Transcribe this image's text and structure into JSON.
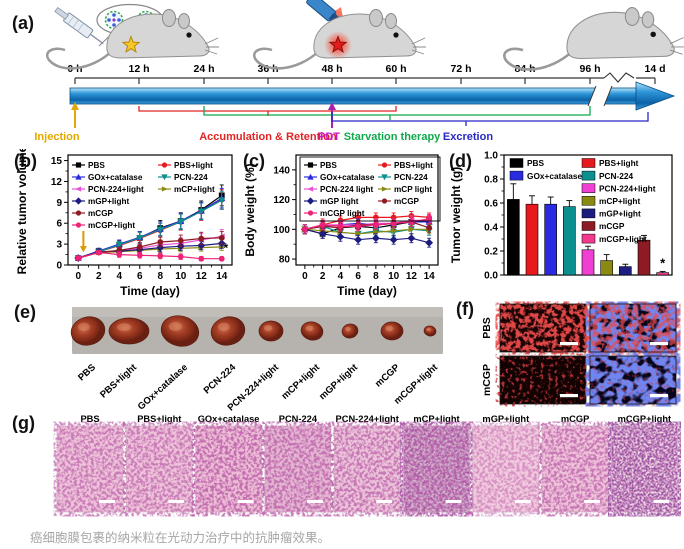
{
  "figure": {
    "caption": "癌细胞膜包裹的纳米粒在光动力治疗中的抗肿瘤效果。"
  },
  "panel_labels": {
    "a": "(a)",
    "b": "(b)",
    "c": "(c)",
    "d": "(d)",
    "e": "(e)",
    "f": "(f)",
    "g": "(g)"
  },
  "timeline": {
    "ticks": [
      "0 h",
      "12 h",
      "24 h",
      "36 h",
      "48 h",
      "60 h",
      "72 h",
      "84 h",
      "96 h",
      "14 d"
    ],
    "phases": [
      {
        "name": "Injection",
        "color": "#e2a800"
      },
      {
        "name": "Accumulation & Retention",
        "color": "#e02424"
      },
      {
        "name": "PDT",
        "color": "#c816c8"
      },
      {
        "name": "Starvation therapy",
        "color": "#11a94c"
      },
      {
        "name": "Excretion",
        "color": "#2828c8"
      }
    ]
  },
  "chart_data": [
    {
      "id": "b",
      "type": "line",
      "title": "",
      "xlabel": "Time (day)",
      "ylabel": "Relative tumor volume",
      "x": [
        0,
        2,
        4,
        6,
        8,
        10,
        12,
        14
      ],
      "xticks": [
        0,
        2,
        4,
        6,
        8,
        10,
        12,
        14
      ],
      "yticks": [
        0,
        3,
        6,
        9,
        12,
        15
      ],
      "xlim": [
        -1,
        15
      ],
      "ylim": [
        0,
        15.8
      ],
      "legend_box": false,
      "legend_columns": [
        [
          "PBS",
          "GOx+catalase",
          "PCN-224+light",
          "mGP+light",
          "mCGP",
          "mCGP+light"
        ],
        [
          "PBS+light",
          "PCN-224",
          "mCP+light"
        ]
      ],
      "series": [
        {
          "name": "PBS",
          "color": "#000000",
          "marker": "square",
          "values": [
            1,
            2.0,
            2.9,
            3.9,
            5.3,
            6.3,
            7.9,
            10.0
          ],
          "err": [
            0.2,
            0.4,
            0.6,
            0.9,
            1.1,
            1.2,
            1.3,
            1.5
          ]
        },
        {
          "name": "PBS+light",
          "color": "#e8191c",
          "marker": "circle",
          "values": [
            1,
            1.9,
            2.8,
            3.8,
            5.0,
            6.2,
            7.7,
            9.4
          ],
          "err": [
            0.2,
            0.3,
            0.6,
            0.9,
            1.0,
            1.2,
            1.3,
            1.4
          ]
        },
        {
          "name": "GOx+catalase",
          "color": "#2a2ae0",
          "marker": "triangle-up",
          "values": [
            1,
            2.0,
            3.0,
            4.0,
            5.2,
            6.3,
            7.8,
            9.6
          ],
          "err": [
            0.2,
            0.4,
            0.6,
            0.8,
            1.0,
            1.1,
            1.2,
            1.4
          ]
        },
        {
          "name": "PCN-224",
          "color": "#0c8f8f",
          "marker": "triangle-down",
          "values": [
            1,
            1.9,
            2.9,
            3.9,
            5.1,
            6.2,
            7.7,
            9.3
          ],
          "err": [
            0.2,
            0.4,
            0.5,
            0.8,
            0.9,
            1.1,
            1.2,
            1.3
          ]
        },
        {
          "name": "PCN-224+light",
          "color": "#ea4fd8",
          "marker": "triangle-left",
          "values": [
            1,
            1.8,
            2.1,
            2.4,
            2.9,
            3.1,
            3.6,
            4.1
          ],
          "err": [
            0.15,
            0.3,
            0.5,
            0.6,
            0.7,
            0.8,
            0.9,
            1.0
          ]
        },
        {
          "name": "mCP+light",
          "color": "#8a8a12",
          "marker": "triangle-right",
          "values": [
            1,
            1.8,
            1.9,
            2.1,
            2.3,
            2.4,
            2.5,
            2.6
          ],
          "err": [
            0.15,
            0.3,
            0.4,
            0.5,
            0.5,
            0.5,
            0.5,
            0.5
          ]
        },
        {
          "name": "mGP+light",
          "color": "#1d1d80",
          "marker": "diamond",
          "values": [
            1,
            1.9,
            2.0,
            2.2,
            2.5,
            2.7,
            2.8,
            3.1
          ],
          "err": [
            0.15,
            0.3,
            0.4,
            0.5,
            0.6,
            0.6,
            0.6,
            0.7
          ]
        },
        {
          "name": "mCGP",
          "color": "#8e1b24",
          "marker": "circle",
          "values": [
            1,
            1.8,
            2.1,
            2.6,
            3.3,
            3.5,
            3.8,
            3.9
          ],
          "err": [
            0.15,
            0.3,
            0.5,
            0.6,
            0.7,
            0.8,
            0.9,
            0.9
          ]
        },
        {
          "name": "mCGP+light",
          "color": "#ee2277",
          "marker": "circle",
          "values": [
            1,
            1.8,
            1.5,
            1.4,
            1.3,
            1.2,
            0.9,
            0.9
          ],
          "err": [
            0.15,
            0.3,
            0.4,
            0.4,
            0.4,
            0.4,
            0.3,
            0.3
          ]
        }
      ],
      "annotations": {
        "arrow": {
          "x": 0.5,
          "y_from": 4.9,
          "y_to": 2.0,
          "color": "#dd9900"
        },
        "star": {
          "x": 14.4,
          "y": 1.9,
          "symbol": "*"
        }
      }
    },
    {
      "id": "c",
      "type": "line",
      "title": "",
      "xlabel": "Time (day)",
      "ylabel": "Body weight (%)",
      "x": [
        0,
        2,
        4,
        6,
        8,
        10,
        12,
        14
      ],
      "xticks": [
        0,
        2,
        4,
        6,
        8,
        10,
        12,
        14
      ],
      "yticks": [
        80,
        100,
        120,
        140
      ],
      "xlim": [
        -1,
        15
      ],
      "ylim": [
        76,
        150
      ],
      "legend_box": true,
      "legend_columns": [
        [
          "PBS",
          "GOx+catalase",
          "PCN-224 light",
          "mGP light",
          "mCGP light"
        ],
        [
          "PBS+light",
          "PCN-224",
          "mCP light",
          "mCGP"
        ]
      ],
      "series": [
        {
          "name": "PBS",
          "color": "#000000",
          "marker": "square",
          "values": [
            100,
            97,
            101,
            102,
            101,
            103,
            105,
            106
          ],
          "err": [
            3,
            3,
            3,
            4,
            3,
            3,
            3,
            3
          ]
        },
        {
          "name": "PBS+light",
          "color": "#e8191c",
          "marker": "circle",
          "values": [
            100,
            103,
            106,
            108,
            108,
            108,
            109,
            108
          ],
          "err": [
            3,
            4,
            3,
            3,
            3,
            3,
            3,
            3
          ]
        },
        {
          "name": "GOx+catalase",
          "color": "#2a2ae0",
          "marker": "triangle-up",
          "values": [
            100,
            102,
            103,
            104,
            103,
            104,
            105,
            105
          ],
          "err": [
            3,
            3,
            3,
            3,
            3,
            3,
            3,
            3
          ]
        },
        {
          "name": "PCN-224",
          "color": "#0c8f8f",
          "marker": "triangle-down",
          "values": [
            100,
            102,
            98,
            97,
            99,
            98,
            100,
            99
          ],
          "err": [
            3,
            3,
            3,
            3,
            3,
            3,
            3,
            3
          ]
        },
        {
          "name": "PCN-224 light",
          "color": "#ea4fd8",
          "marker": "triangle-left",
          "values": [
            100,
            103,
            103,
            103,
            104,
            104,
            106,
            106
          ],
          "err": [
            3,
            3,
            3,
            3,
            3,
            3,
            3,
            3
          ]
        },
        {
          "name": "mCP light",
          "color": "#8a8a12",
          "marker": "triangle-right",
          "values": [
            100,
            99,
            98,
            97,
            98,
            99,
            100,
            100
          ],
          "err": [
            3,
            3,
            3,
            3,
            3,
            3,
            3,
            3
          ]
        },
        {
          "name": "mGP light",
          "color": "#1d1d80",
          "marker": "diamond",
          "values": [
            100,
            97,
            95,
            93,
            94,
            93,
            94,
            91
          ],
          "err": [
            3,
            3,
            3,
            3,
            3,
            3,
            3,
            3
          ]
        },
        {
          "name": "mCGP",
          "color": "#8e1b24",
          "marker": "circle",
          "values": [
            100,
            102,
            101,
            103,
            103,
            104,
            105,
            101
          ],
          "err": [
            3,
            3,
            3,
            3,
            3,
            3,
            3,
            3
          ]
        },
        {
          "name": "mCGP light",
          "color": "#ee2277",
          "marker": "circle",
          "values": [
            100,
            103,
            102,
            102,
            103,
            104,
            105,
            107
          ],
          "err": [
            3,
            3,
            3,
            3,
            3,
            3,
            3,
            3
          ]
        }
      ]
    },
    {
      "id": "d",
      "type": "bar",
      "title": "",
      "xlabel": "",
      "ylabel": "Tumor weight (g)",
      "categories": [
        "PBS",
        "PBS+light",
        "GOx+catalase",
        "PCN-224",
        "PCN-224+light",
        "mCP+light",
        "mGP+light",
        "mCGP",
        "mCGP+light"
      ],
      "values": [
        0.63,
        0.59,
        0.59,
        0.57,
        0.21,
        0.12,
        0.07,
        0.29,
        0.02
      ],
      "errors": [
        0.13,
        0.07,
        0.06,
        0.05,
        0.03,
        0.05,
        0.02,
        0.04,
        0.01
      ],
      "colors": [
        "#000000",
        "#e8191c",
        "#2a2ae0",
        "#0c8f8f",
        "#f03fd3",
        "#8a8a12",
        "#1d1d80",
        "#8e1b24",
        "#f23a8c"
      ],
      "yticks": [
        0.0,
        0.2,
        0.4,
        0.6,
        0.8,
        1.0
      ],
      "ylim": [
        0,
        1.0
      ],
      "legend_columns": [
        [
          "PBS",
          "GOx+catalase"
        ],
        [
          "PBS+light",
          "PCN-224",
          "PCN-224+light",
          "mCP+light",
          "mGP+light",
          "mCGP",
          "mCGP+light"
        ]
      ],
      "significance": {
        "index": 8,
        "symbol": "*"
      }
    }
  ],
  "tumor_photo": {
    "labels": [
      "PBS",
      "PBS+light",
      "GOx+catalase",
      "PCN-224",
      "PCN-224+light",
      "mCP+light",
      "mGP+light",
      "mCGP",
      "mCGP+light"
    ]
  },
  "fluorescence": {
    "rows": [
      "PBS",
      "mCGP"
    ]
  },
  "histology": {
    "labels": [
      "PBS",
      "PBS+light",
      "GOx+catalase",
      "PCN-224",
      "PCN-224+light",
      "mCP+light",
      "mGP+light",
      "mCGP",
      "mCGP+light"
    ]
  }
}
